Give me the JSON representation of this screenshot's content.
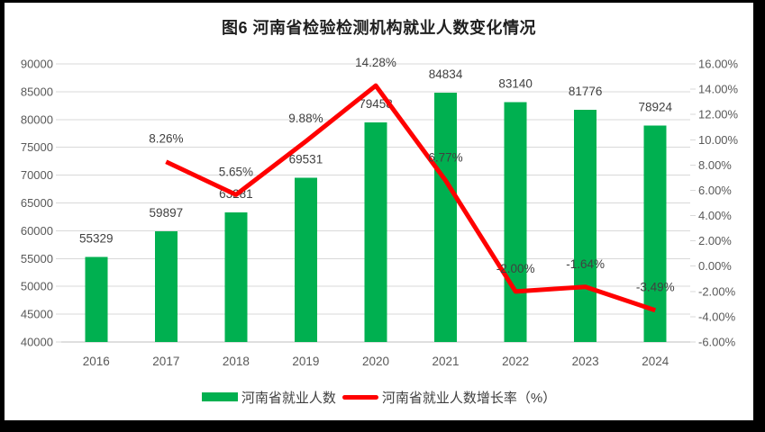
{
  "title": "图6  河南省检验检测机构就业人数变化情况",
  "chart_data": {
    "type": "bar+line combo",
    "categories": [
      "2016",
      "2017",
      "2018",
      "2019",
      "2020",
      "2021",
      "2022",
      "2023",
      "2024"
    ],
    "series": [
      {
        "name": "河南省就业人数",
        "type": "bar",
        "axis": "left",
        "values": [
          55329,
          59897,
          63281,
          69531,
          79458,
          84834,
          83140,
          81776,
          78924
        ],
        "labels": [
          "55329",
          "59897",
          "63281",
          "69531",
          "79458",
          "84834",
          "83140",
          "81776",
          "78924"
        ],
        "color": "#00B050"
      },
      {
        "name": "河南省就业人数增长率（%）",
        "type": "line",
        "axis": "right",
        "start_index": 1,
        "values": [
          8.26,
          5.65,
          9.88,
          14.28,
          6.77,
          -2.0,
          -1.64,
          -3.49
        ],
        "labels": [
          "8.26%",
          "5.65%",
          "9.88%",
          "14.28%",
          "6.77%",
          "-2.00%",
          "-1.64%",
          "-3.49%"
        ],
        "color": "#FF0000"
      }
    ],
    "axes": {
      "left": {
        "min": 40000,
        "max": 90000,
        "tick_labels": [
          "90000",
          "85000",
          "80000",
          "75000",
          "70000",
          "65000",
          "60000",
          "55000",
          "50000",
          "45000",
          "40000"
        ]
      },
      "right": {
        "min": -6,
        "max": 16,
        "tick_labels": [
          "16.00%",
          "14.00%",
          "12.00%",
          "10.00%",
          "8.00%",
          "6.00%",
          "4.00%",
          "2.00%",
          "0.00%",
          "-2.00%",
          "-4.00%",
          "-6.00%"
        ]
      }
    },
    "grid": true,
    "legend_position": "bottom",
    "legend": [
      {
        "label": "河南省就业人数",
        "swatch": "bar",
        "color": "#00B050"
      },
      {
        "label": "河南省就业人数增长率（%）",
        "swatch": "line",
        "color": "#FF0000"
      }
    ]
  },
  "colors": {
    "frame": "#000000",
    "panel": "#FFFFFF",
    "bar": "#00B050",
    "line": "#FF0000",
    "gridline": "#D9D9D9",
    "axis_line": "#BFBFBF",
    "tick_text": "#595959",
    "data_label": "#404040"
  }
}
